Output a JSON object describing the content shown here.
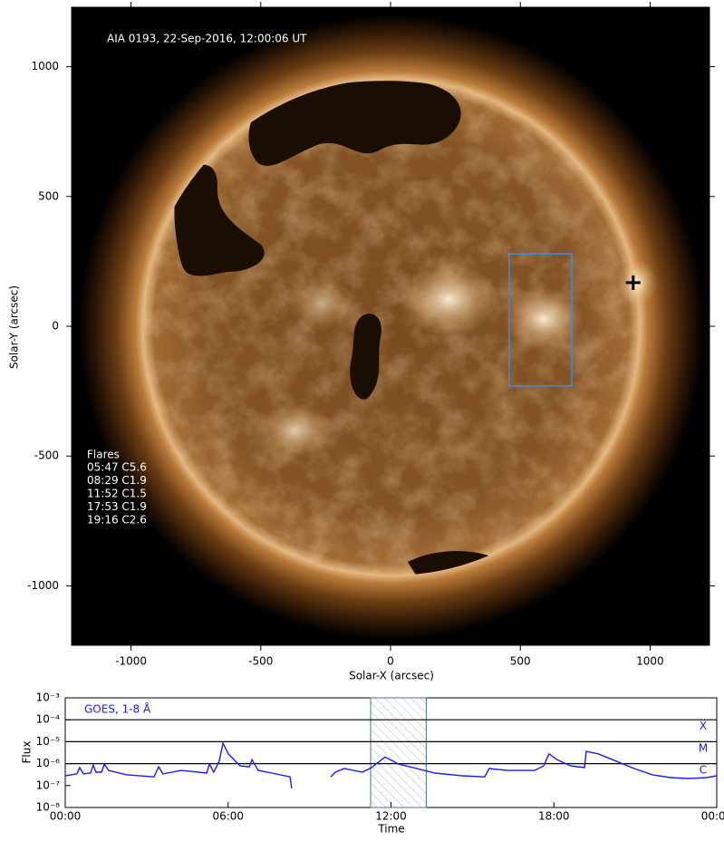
{
  "chart_data": [
    {
      "type": "image",
      "annotation": "AIA 0193, 22-Sep-2016, 12:00:06 UT",
      "xlabel": "Solar-X (arcsec)",
      "ylabel": "Solar-Y (arcsec)",
      "xlim": [
        -1229,
        1229
      ],
      "ylim": [
        -1229,
        1229
      ],
      "xticks": [
        -1000,
        -500,
        0,
        500,
        1000
      ],
      "yticks": [
        -1000,
        -500,
        0,
        500,
        1000
      ],
      "flares": {
        "title": "Flares",
        "items": [
          "05:47 C5.6",
          "08:29 C1.9",
          "11:52 C1.5",
          "17:53 C1.9",
          "19:16 C2.6"
        ]
      },
      "box": {
        "x": [
          457,
          698
        ],
        "y": [
          -230,
          279
        ],
        "color": "#3a8ee6"
      },
      "marker": {
        "x": 935,
        "y": 168
      }
    },
    {
      "type": "line",
      "log_y": true,
      "title": "GOES, 1-8 Å",
      "xlabel": "Time",
      "ylabel": "Flux",
      "xlim": [
        0,
        24
      ],
      "ylim": [
        1e-08,
        0.001
      ],
      "xticks": [
        {
          "value": 0,
          "label": "00:00"
        },
        {
          "value": 6,
          "label": "06:00"
        },
        {
          "value": 12,
          "label": "12:00"
        },
        {
          "value": 18,
          "label": "18:00"
        },
        {
          "value": 24,
          "label": "00:00"
        }
      ],
      "yticks": [
        {
          "value": 1e-08,
          "label": "10⁻⁸"
        },
        {
          "value": 1e-07,
          "label": "10⁻⁷"
        },
        {
          "value": 1e-06,
          "label": "10⁻⁶"
        },
        {
          "value": 1e-05,
          "label": "10⁻⁵"
        },
        {
          "value": 0.0001,
          "label": "10⁻⁴"
        },
        {
          "value": 0.001,
          "label": "10⁻³"
        }
      ],
      "levels": [
        {
          "value": 0.0001,
          "label": "X"
        },
        {
          "value": 1e-05,
          "label": "M"
        },
        {
          "value": 1e-06,
          "label": "C"
        }
      ],
      "highlight": [
        11.25,
        13.3
      ],
      "x": [
        0,
        0.43,
        0.53,
        0.67,
        0.93,
        1.03,
        1.13,
        1.34,
        1.44,
        1.6,
        2.27,
        3.27,
        3.44,
        3.6,
        4.27,
        5.21,
        5.31,
        5.47,
        5.67,
        5.81,
        6.01,
        6.44,
        6.78,
        6.88,
        7.11,
        7.61,
        8.28,
        8.34,
        8.9,
        9.78,
        9.95,
        10.28,
        10.95,
        11.28,
        11.78,
        12.28,
        12.95,
        13.62,
        14.62,
        15.45,
        15.62,
        16.29,
        17.29,
        17.62,
        17.82,
        18.12,
        18.62,
        19.13,
        19.19,
        19.63,
        20.29,
        20.96,
        21.63,
        22.3,
        22.96,
        23.63,
        24
      ],
      "series": [
        {
          "name": "GOES, 1-8 Å",
          "color": "#1a1aff",
          "values": [
            2.8e-07,
            3.4e-07,
            6.6e-07,
            3.4e-07,
            3.7e-07,
            8.7e-07,
            4.1e-07,
            4.1e-07,
            9.5e-07,
            4.9e-07,
            3.1e-07,
            2.5e-07,
            7.2e-07,
            3.4e-07,
            4.9e-07,
            3.7e-07,
            9.5e-07,
            4.1e-07,
            1.3e-06,
            8.5e-06,
            2.8e-06,
            7.9e-07,
            7.2e-07,
            1.5e-06,
            4.9e-07,
            3.7e-07,
            2.5e-07,
            7.4e-08,
            null,
            2.5e-07,
            4.1e-07,
            6e-07,
            4.1e-07,
            6.6e-07,
            2e-06,
            9.5e-07,
            6e-07,
            3.7e-07,
            2.8e-07,
            2.5e-07,
            6e-07,
            4.9e-07,
            4.9e-07,
            7.9e-07,
            2.8e-06,
            1.5e-06,
            7.9e-07,
            6.6e-07,
            3.6e-06,
            2.8e-06,
            1.3e-06,
            6e-07,
            3.1e-07,
            2.3e-07,
            2.1e-07,
            2.3e-07,
            2.8e-07
          ]
        }
      ]
    }
  ]
}
